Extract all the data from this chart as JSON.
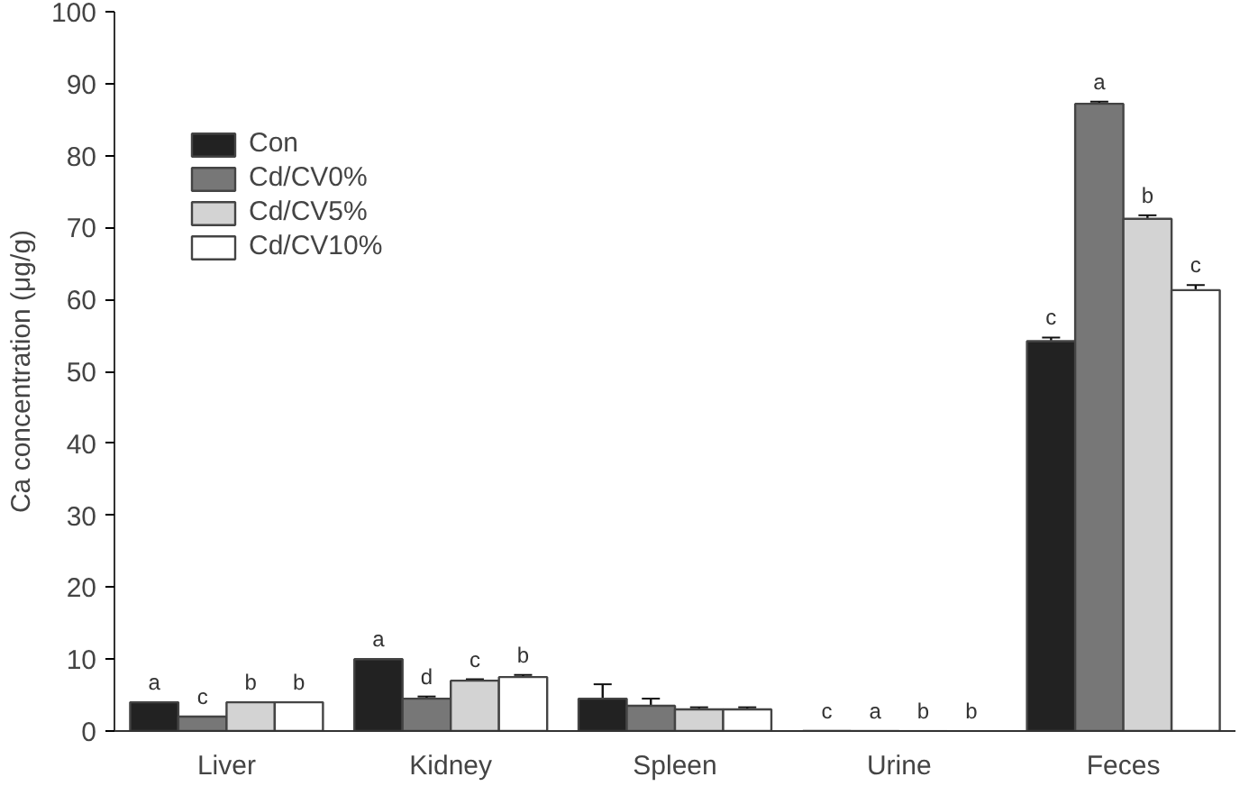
{
  "chart_data": {
    "type": "bar",
    "ylabel": "Ca concentration (μg/g)",
    "categories": [
      "Liver",
      "Kidney",
      "Spleen",
      "Urine",
      "Feces"
    ],
    "series": [
      {
        "name": "Con",
        "color": "#222222",
        "values": [
          4,
          10,
          4.5,
          0,
          54.2
        ],
        "errors": [
          null,
          null,
          2,
          null,
          0.5
        ],
        "value_labels": [
          "a",
          "a",
          null,
          "c",
          "c"
        ]
      },
      {
        "name": "Cd/CV0%",
        "color": "#777777",
        "values": [
          2,
          4.5,
          3.5,
          0,
          87.2
        ],
        "errors": [
          null,
          0.3,
          1,
          null,
          0.3
        ],
        "value_labels": [
          "c",
          "d",
          null,
          "a",
          "a"
        ]
      },
      {
        "name": "Cd/CV5%",
        "color": "#d3d3d3",
        "values": [
          4,
          7,
          3,
          0,
          71.2
        ],
        "errors": [
          null,
          0.2,
          0.3,
          null,
          0.5
        ],
        "value_labels": [
          "b",
          "c",
          null,
          "b",
          "b"
        ]
      },
      {
        "name": "Cd/CV10%",
        "color": "#ffffff",
        "values": [
          4,
          7.5,
          3,
          0,
          61.3
        ],
        "errors": [
          null,
          0.3,
          0.3,
          null,
          0.7
        ],
        "value_labels": [
          "b",
          "b",
          null,
          "b",
          "c"
        ]
      }
    ],
    "ylim": [
      0,
      100
    ],
    "yticks": [
      0,
      10,
      20,
      30,
      40,
      50,
      60,
      70,
      80,
      90,
      100
    ],
    "grid": false,
    "legend": "top left"
  }
}
